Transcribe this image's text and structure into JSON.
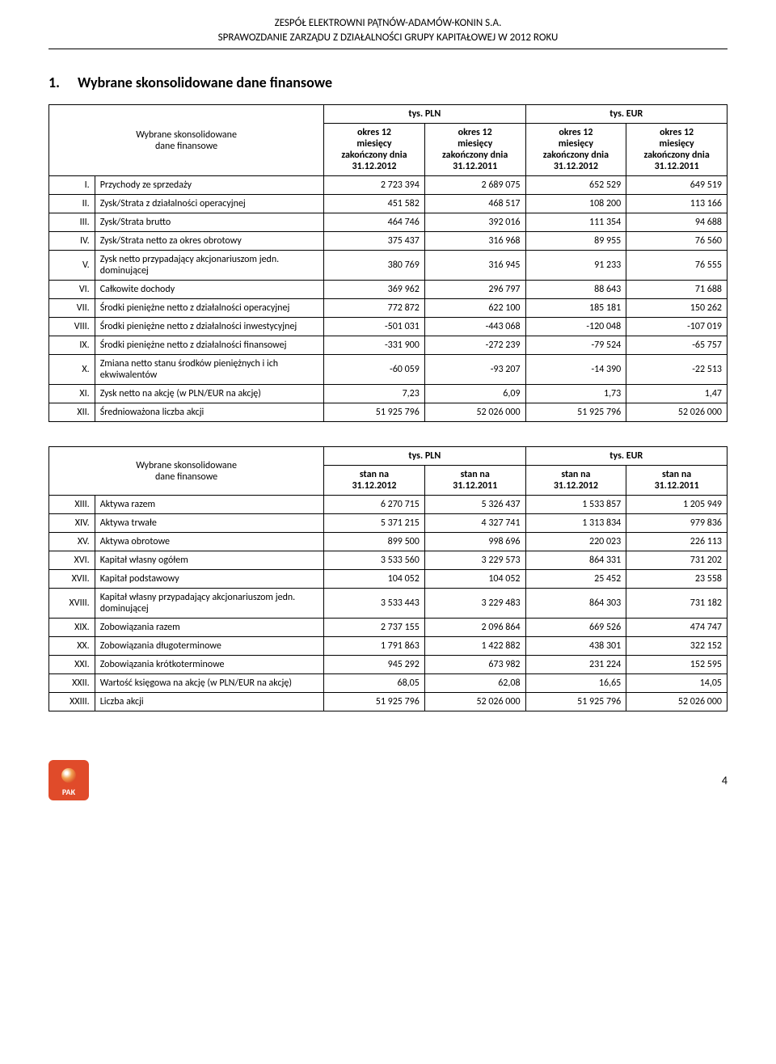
{
  "header": {
    "line1": "ZESPÓŁ ELEKTROWNI PĄTNÓW-ADAMÓW-KONIN S.A.",
    "line2": "SPRAWOZDANIE ZARZĄDU Z DZIAŁALNOŚCI GRUPY KAPITAŁOWEJ W 2012 ROKU"
  },
  "section": {
    "num": "1.",
    "title": "Wybrane skonsolidowane dane finansowe"
  },
  "table1": {
    "caption": "Wybrane skonsolidowane\ndane finansowe",
    "group_pln": "tys. PLN",
    "group_eur": "tys. EUR",
    "col1": "okres 12\nmiesięcy\nzakończony dnia\n31.12.2012",
    "col2": "okres 12\nmiesięcy\nzakończony dnia\n31.12.2011",
    "col3": "okres 12\nmiesięcy\nzakończony dnia\n31.12.2012",
    "col4": "okres 12\nmiesięcy\nzakończony dnia\n31.12.2011",
    "rows": [
      {
        "rn": "I.",
        "label": "Przychody ze sprzedaży",
        "v": [
          "2 723 394",
          "2 689 075",
          "652 529",
          "649 519"
        ]
      },
      {
        "rn": "II.",
        "label": "Zysk/Strata z działalności operacyjnej",
        "v": [
          "451 582",
          "468 517",
          "108 200",
          "113 166"
        ]
      },
      {
        "rn": "III.",
        "label": "Zysk/Strata brutto",
        "v": [
          "464 746",
          "392 016",
          "111 354",
          "94 688"
        ]
      },
      {
        "rn": "IV.",
        "label": "Zysk/Strata netto za okres obrotowy",
        "v": [
          "375 437",
          "316 968",
          "89 955",
          "76 560"
        ]
      },
      {
        "rn": "V.",
        "label": "Zysk netto przypadający akcjonariuszom jedn. dominującej",
        "v": [
          "380 769",
          "316 945",
          "91 233",
          "76 555"
        ]
      },
      {
        "rn": "VI.",
        "label": "Całkowite dochody",
        "v": [
          "369 962",
          "296 797",
          "88 643",
          "71 688"
        ]
      },
      {
        "rn": "VII.",
        "label": "Środki pieniężne netto z działalności operacyjnej",
        "v": [
          "772 872",
          "622 100",
          "185 181",
          "150 262"
        ]
      },
      {
        "rn": "VIII.",
        "label": "Środki pieniężne netto z działalności inwestycyjnej",
        "v": [
          "-501 031",
          "-443 068",
          "-120 048",
          "-107 019"
        ]
      },
      {
        "rn": "IX.",
        "label": "Środki pieniężne netto z działalności finansowej",
        "v": [
          "-331 900",
          "-272 239",
          "-79 524",
          "-65 757"
        ]
      },
      {
        "rn": "X.",
        "label": "Zmiana netto stanu środków pieniężnych i ich ekwiwalentów",
        "v": [
          "-60 059",
          "-93 207",
          "-14 390",
          "-22 513"
        ]
      },
      {
        "rn": "XI.",
        "label": "Zysk netto na akcję (w PLN/EUR na akcję)",
        "v": [
          "7,23",
          "6,09",
          "1,73",
          "1,47"
        ]
      },
      {
        "rn": "XII.",
        "label": "Średnioważona liczba akcji",
        "v": [
          "51 925 796",
          "52 026 000",
          "51 925 796",
          "52 026 000"
        ]
      }
    ]
  },
  "table2": {
    "caption": "Wybrane skonsolidowane\ndane finansowe",
    "group_pln": "tys. PLN",
    "group_eur": "tys. EUR",
    "col1": "stan na\n31.12.2012",
    "col2": "stan na\n31.12.2011",
    "col3": "stan na\n31.12.2012",
    "col4": "stan na\n31.12.2011",
    "rows": [
      {
        "rn": "XIII.",
        "label": "Aktywa razem",
        "v": [
          "6 270 715",
          "5 326 437",
          "1 533 857",
          "1 205 949"
        ]
      },
      {
        "rn": "XIV.",
        "label": "Aktywa trwałe",
        "v": [
          "5 371 215",
          "4 327 741",
          "1 313 834",
          "979 836"
        ]
      },
      {
        "rn": "XV.",
        "label": "Aktywa obrotowe",
        "v": [
          "899 500",
          "998 696",
          "220 023",
          "226 113"
        ]
      },
      {
        "rn": "XVI.",
        "label": "Kapitał własny ogółem",
        "v": [
          "3 533 560",
          "3 229 573",
          "864 331",
          "731 202"
        ]
      },
      {
        "rn": "XVII.",
        "label": "Kapitał podstawowy",
        "v": [
          "104 052",
          "104 052",
          "25 452",
          "23 558"
        ]
      },
      {
        "rn": "XVIII.",
        "label": "Kapitał własny przypadający akcjonariuszom jedn. dominującej",
        "v": [
          "3 533 443",
          "3 229 483",
          "864 303",
          "731 182"
        ]
      },
      {
        "rn": "XIX.",
        "label": "Zobowiązania razem",
        "v": [
          "2 737 155",
          "2 096 864",
          "669 526",
          "474 747"
        ]
      },
      {
        "rn": "XX.",
        "label": "Zobowiązania długoterminowe",
        "v": [
          "1 791 863",
          "1 422 882",
          "438 301",
          "322 152"
        ]
      },
      {
        "rn": "XXI.",
        "label": "Zobowiązania krótkoterminowe",
        "v": [
          "945 292",
          "673 982",
          "231 224",
          "152 595"
        ]
      },
      {
        "rn": "XXII.",
        "label": "Wartość księgowa na akcję (w PLN/EUR na akcję)",
        "v": [
          "68,05",
          "62,08",
          "16,65",
          "14,05"
        ]
      },
      {
        "rn": "XXIII.",
        "label": "Liczba akcji",
        "v": [
          "51 925 796",
          "52 026 000",
          "51 925 796",
          "52 026 000"
        ]
      }
    ]
  },
  "footer": {
    "page": "4"
  }
}
